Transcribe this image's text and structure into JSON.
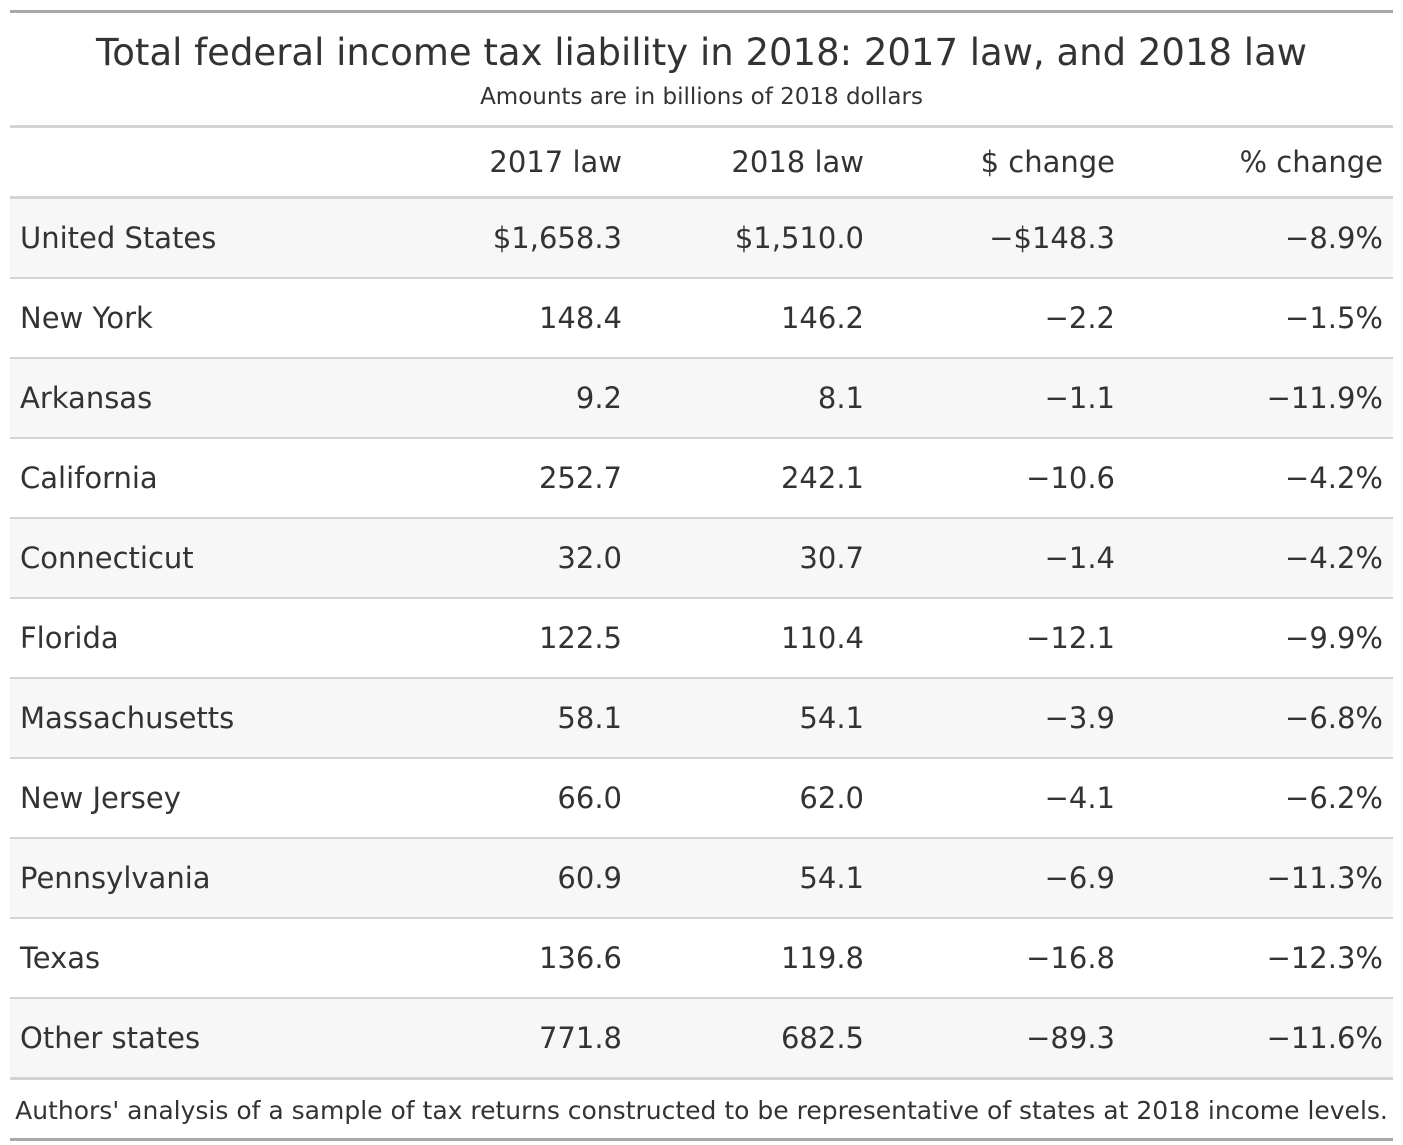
{
  "header": {
    "title": "Total federal income tax liability in 2018: 2017 law, and 2018 law",
    "subtitle": "Amounts are in billions of 2018 dollars"
  },
  "table": {
    "columns": [
      "",
      "2017 law",
      "2018 law",
      "$ change",
      "% change"
    ],
    "rows": [
      [
        "United States",
        "$1,658.3",
        "$1,510.0",
        "−$148.3",
        "−8.9%"
      ],
      [
        "New York",
        "148.4",
        "146.2",
        "−2.2",
        "−1.5%"
      ],
      [
        "Arkansas",
        "9.2",
        "8.1",
        "−1.1",
        "−11.9%"
      ],
      [
        "California",
        "252.7",
        "242.1",
        "−10.6",
        "−4.2%"
      ],
      [
        "Connecticut",
        "32.0",
        "30.7",
        "−1.4",
        "−4.2%"
      ],
      [
        "Florida",
        "122.5",
        "110.4",
        "−12.1",
        "−9.9%"
      ],
      [
        "Massachusetts",
        "58.1",
        "54.1",
        "−3.9",
        "−6.8%"
      ],
      [
        "New Jersey",
        "66.0",
        "62.0",
        "−4.1",
        "−6.2%"
      ],
      [
        "Pennsylvania",
        "60.9",
        "54.1",
        "−6.9",
        "−11.3%"
      ],
      [
        "Texas",
        "136.6",
        "119.8",
        "−16.8",
        "−12.3%"
      ],
      [
        "Other states",
        "771.8",
        "682.5",
        "−89.3",
        "−11.6%"
      ]
    ]
  },
  "footer": {
    "source": "Authors' analysis of a sample of tax returns constructed to be representative of states at 2018 income levels."
  }
}
